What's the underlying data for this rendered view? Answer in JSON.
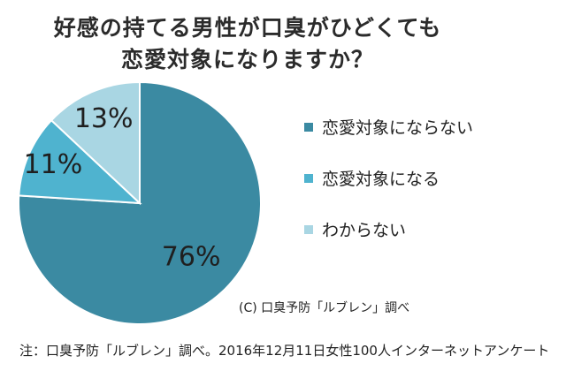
{
  "chart_data": {
    "type": "pie",
    "title": "好感の持てる男性が口臭がひどくても\n恋愛対象になりますか？",
    "title_lines": [
      "好感の持てる男性が口臭がひどくても",
      "恋愛対象になりますか？"
    ],
    "categories": [
      "恋愛対象にならない",
      "恋愛対象になる",
      "わからない"
    ],
    "values": [
      76,
      11,
      13
    ],
    "data_labels": [
      "76%",
      "11%",
      "13%"
    ],
    "colors": [
      "#3b8aa2",
      "#4fb3cf",
      "#a9d6e3"
    ],
    "start": "top, clockwise",
    "legend": "right",
    "credit": "(C) 口臭予防「ルブレン」調べ"
  },
  "footnote": "注：口臭予防「ルブレン」調べ。2016年12月11日女性100人インターネットアンケート"
}
